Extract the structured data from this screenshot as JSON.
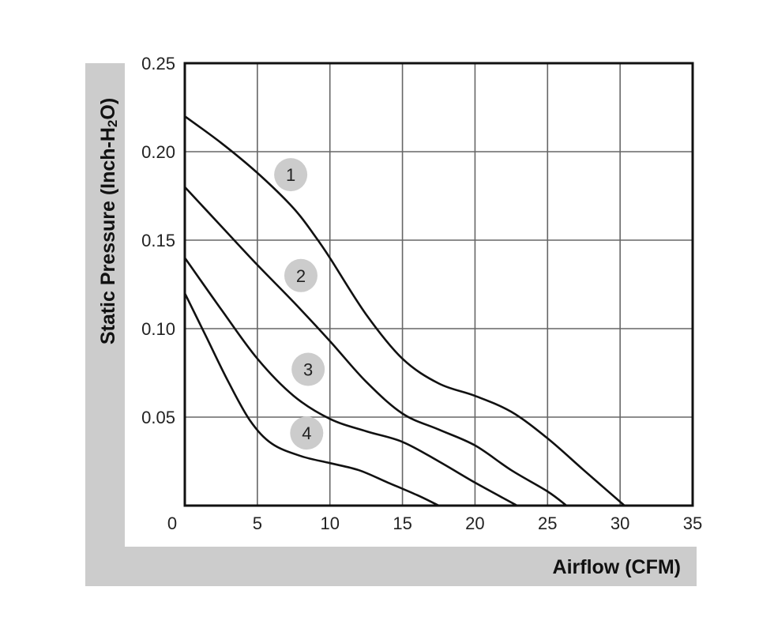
{
  "chart_data": {
    "type": "line",
    "xlabel": "Airflow (CFM)",
    "ylabel": {
      "before_sub": "Static Pressure (Inch-H",
      "sub": "2",
      "after_sub": "O)"
    },
    "xlim": [
      0,
      35
    ],
    "ylim": [
      0,
      0.25
    ],
    "x_ticks": [
      0,
      5,
      10,
      15,
      20,
      25,
      30,
      35
    ],
    "x_tick_labels": [
      "0",
      "5",
      "10",
      "15",
      "20",
      "25",
      "30",
      "35"
    ],
    "y_ticks": [
      0.05,
      0.1,
      0.15,
      0.2,
      0.25
    ],
    "y_tick_labels": [
      "0.05",
      "0.10",
      "0.15",
      "0.20",
      "0.25"
    ],
    "grid": true,
    "line_color": "#111111",
    "badge_color": "#cccccc",
    "frame_color": "#cccccc",
    "series": [
      {
        "label": "1",
        "label_at": [
          7.3,
          0.187
        ],
        "points": [
          [
            0,
            0.22
          ],
          [
            2.5,
            0.205
          ],
          [
            5,
            0.188
          ],
          [
            7.5,
            0.168
          ],
          [
            9,
            0.152
          ],
          [
            10,
            0.14
          ],
          [
            12.5,
            0.108
          ],
          [
            15,
            0.083
          ],
          [
            17.5,
            0.069
          ],
          [
            20,
            0.062
          ],
          [
            22.5,
            0.053
          ],
          [
            25,
            0.038
          ],
          [
            27.5,
            0.02
          ],
          [
            30.3,
            0
          ]
        ]
      },
      {
        "label": "2",
        "label_at": [
          8.0,
          0.13
        ],
        "points": [
          [
            0,
            0.18
          ],
          [
            2.5,
            0.158
          ],
          [
            5,
            0.136
          ],
          [
            7.5,
            0.115
          ],
          [
            10,
            0.093
          ],
          [
            12.5,
            0.07
          ],
          [
            15,
            0.052
          ],
          [
            17.5,
            0.043
          ],
          [
            20,
            0.034
          ],
          [
            22.5,
            0.02
          ],
          [
            25,
            0.008
          ],
          [
            26.3,
            0
          ]
        ]
      },
      {
        "label": "3",
        "label_at": [
          8.5,
          0.077
        ],
        "points": [
          [
            0,
            0.14
          ],
          [
            2.5,
            0.111
          ],
          [
            5,
            0.083
          ],
          [
            7.5,
            0.062
          ],
          [
            10,
            0.049
          ],
          [
            12.5,
            0.042
          ],
          [
            15,
            0.036
          ],
          [
            17.5,
            0.025
          ],
          [
            20,
            0.013
          ],
          [
            22.9,
            0
          ]
        ]
      },
      {
        "label": "4",
        "label_at": [
          8.4,
          0.041
        ],
        "points": [
          [
            0,
            0.12
          ],
          [
            1.5,
            0.095
          ],
          [
            3,
            0.07
          ],
          [
            4.5,
            0.048
          ],
          [
            6,
            0.035
          ],
          [
            8,
            0.028
          ],
          [
            10,
            0.024
          ],
          [
            12,
            0.02
          ],
          [
            14,
            0.013
          ],
          [
            16,
            0.006
          ],
          [
            17.5,
            0
          ]
        ]
      }
    ]
  }
}
